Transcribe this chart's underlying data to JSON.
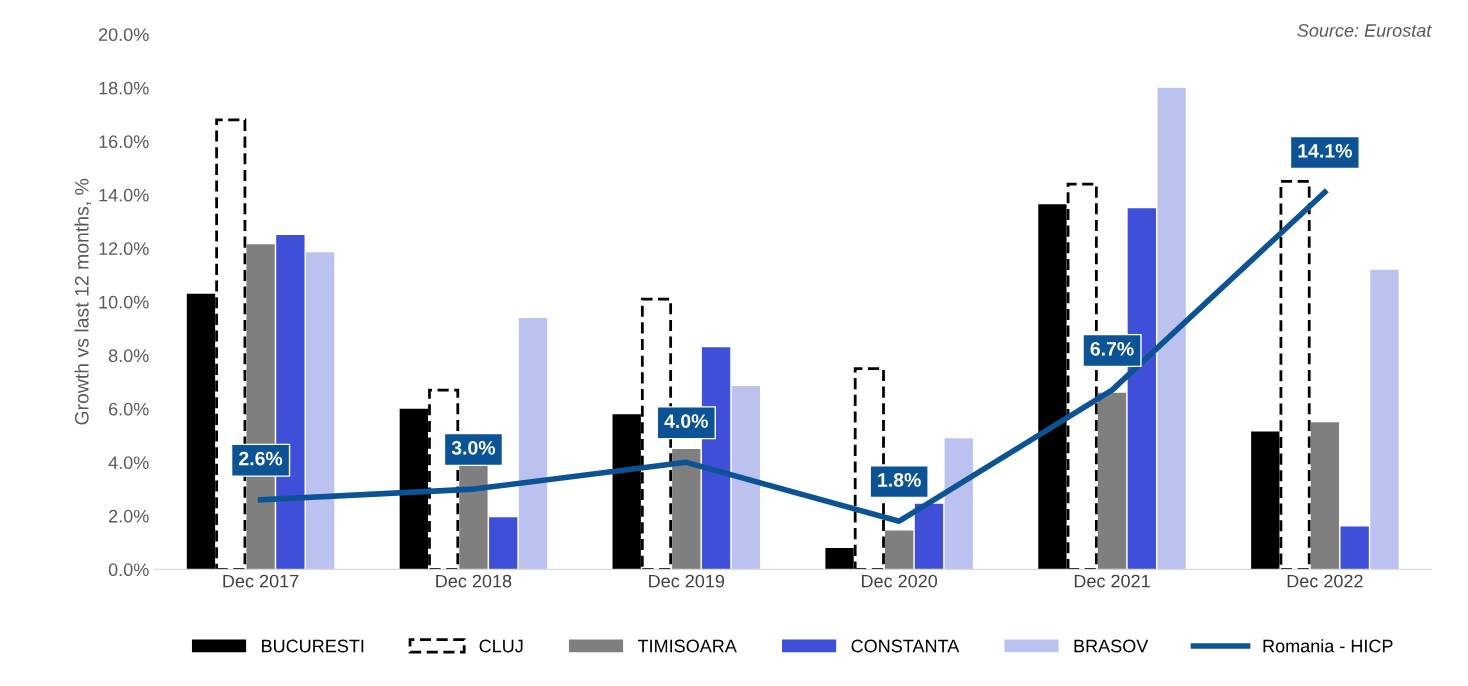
{
  "chart_data": {
    "type": "bar",
    "ylabel": "Growth vs last 12 months, %",
    "categories": [
      "Dec 2017",
      "Dec 2018",
      "Dec 2019",
      "Dec 2020",
      "Dec 2021",
      "Dec 2022"
    ],
    "series": [
      {
        "name": "BUCURESTI",
        "color": "#000000",
        "values": [
          10.3,
          6.0,
          5.8,
          0.8,
          13.65,
          5.15
        ]
      },
      {
        "name": "CLUJ",
        "color": "#000000",
        "line_style": "dashed",
        "values": [
          16.8,
          6.7,
          10.1,
          7.5,
          14.4,
          14.5
        ]
      },
      {
        "name": "TIMISOARA",
        "color": "#7f7f7f",
        "values": [
          12.15,
          3.9,
          4.5,
          1.45,
          6.6,
          5.5
        ]
      },
      {
        "name": "CONSTANTA",
        "color": "#3f4fd8",
        "values": [
          12.5,
          1.95,
          8.3,
          2.45,
          13.5,
          1.6
        ]
      },
      {
        "name": "BRASOV",
        "color": "#bcc2f0",
        "values": [
          11.85,
          9.4,
          6.85,
          4.9,
          18.0,
          11.2
        ]
      },
      {
        "name": "Romania - HICP",
        "type": "line",
        "color": "#0b5394",
        "values": [
          2.6,
          3.0,
          4.0,
          1.8,
          6.7,
          14.1
        ],
        "value_labels": [
          "2.6%",
          "3.0%",
          "4.0%",
          "1.8%",
          "6.7%",
          "14.1%"
        ]
      }
    ],
    "ylim": [
      0,
      20
    ],
    "yticks": [
      {
        "value": 0,
        "label": "0.0%"
      },
      {
        "value": 2,
        "label": "2.0%"
      },
      {
        "value": 4,
        "label": "4.0%"
      },
      {
        "value": 6,
        "label": "6.0%"
      },
      {
        "value": 8,
        "label": "8.0%"
      },
      {
        "value": 10,
        "label": "10.0%"
      },
      {
        "value": 12,
        "label": "12.0%"
      },
      {
        "value": 14,
        "label": "14.0%"
      },
      {
        "value": 16,
        "label": "16.0%"
      },
      {
        "value": 18,
        "label": "18.0%"
      },
      {
        "value": 20,
        "label": "20.0%"
      }
    ],
    "grid": false,
    "legend": "bottom",
    "annotations": [
      "Source: Eurostat"
    ]
  }
}
